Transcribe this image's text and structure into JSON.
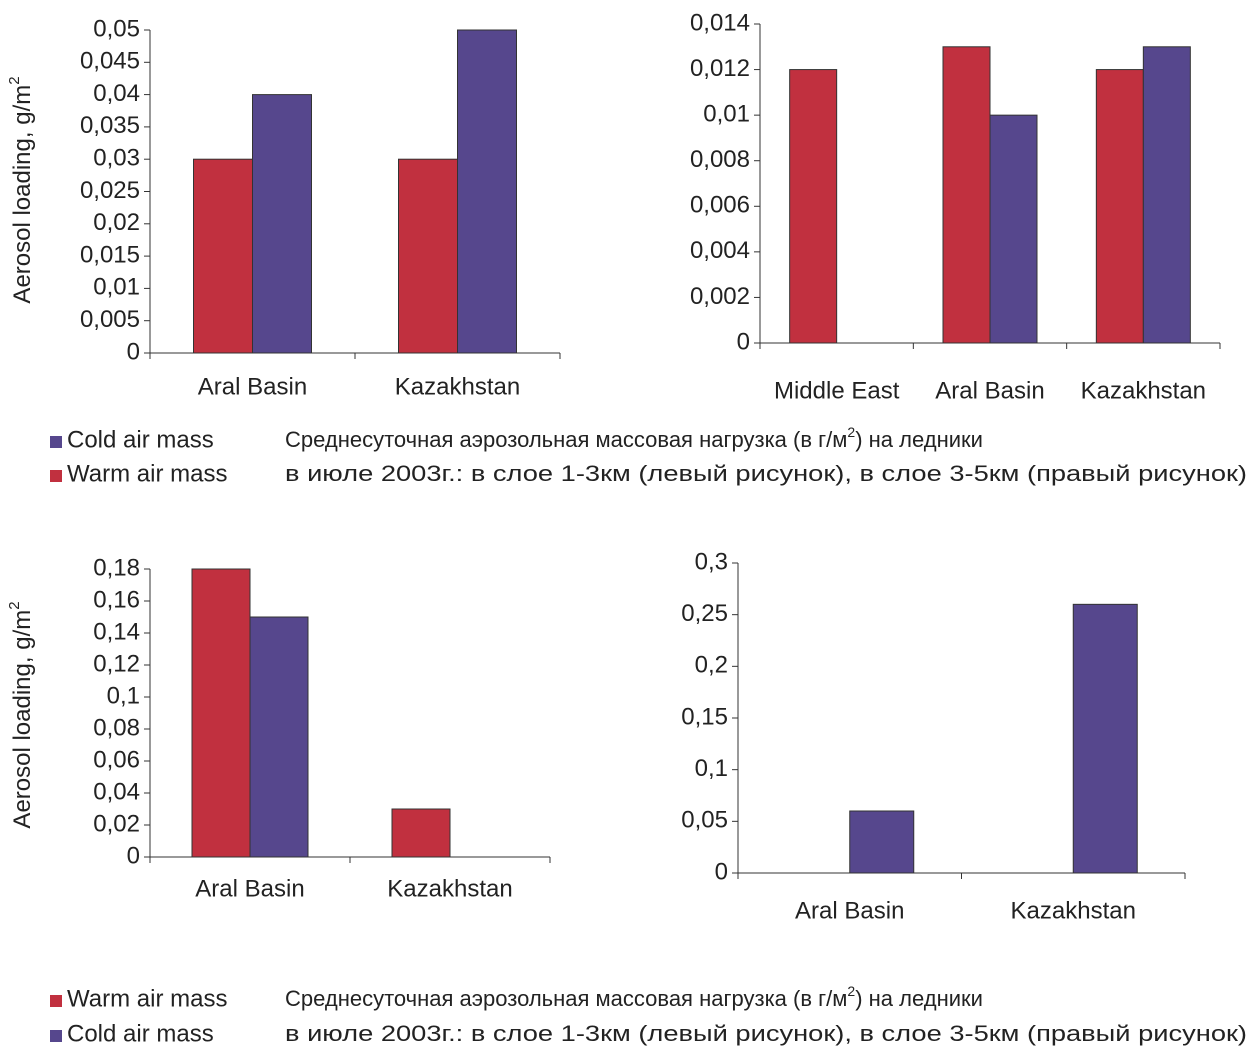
{
  "chart_data": [
    {
      "type": "bar",
      "ylabel": "Aerosol loading, g/m",
      "ylabel_sup": "2",
      "categories": [
        "Aral Basin",
        "Kazakhstan"
      ],
      "series": [
        {
          "name": "Warm air mass",
          "color": "#c1303f",
          "values": [
            0.03,
            0.03
          ]
        },
        {
          "name": "Cold air mass",
          "color": "#56478d",
          "values": [
            0.04,
            0.05
          ]
        }
      ],
      "ylim": [
        0,
        0.05
      ],
      "yticks": [
        0,
        {
          "value": 0.005,
          "label": "0,005"
        },
        {
          "value": 0.01,
          "label": "0,01"
        },
        {
          "value": 0.015,
          "label": "0,015"
        },
        {
          "value": 0.02,
          "label": "0,02"
        },
        {
          "value": 0.025,
          "label": "0,025"
        },
        {
          "value": 0.03,
          "label": "0,03"
        },
        {
          "value": 0.035,
          "label": "0,035"
        },
        {
          "value": 0.04,
          "label": "0,04"
        },
        {
          "value": 0.045,
          "label": "0,045"
        },
        {
          "value": 0.05,
          "label": "0,05"
        }
      ]
    },
    {
      "type": "bar",
      "categories": [
        "Middle East",
        "Aral Basin",
        "Kazakhstan"
      ],
      "series": [
        {
          "color": "#c1303f",
          "values": [
            0.012,
            0.013,
            0.012
          ]
        },
        {
          "color": "#56478d",
          "values": [
            null,
            0.01,
            0.013
          ]
        }
      ],
      "ylim": [
        0,
        0.014
      ],
      "yticks": [
        0,
        {
          "value": 0.002,
          "label": "0,002"
        },
        {
          "value": 0.004,
          "label": "0,004"
        },
        {
          "value": 0.006,
          "label": "0,006"
        },
        {
          "value": 0.008,
          "label": "0,008"
        },
        {
          "value": 0.01,
          "label": "0,01"
        },
        {
          "value": 0.012,
          "label": "0,012"
        },
        {
          "value": 0.014,
          "label": "0,014"
        }
      ]
    },
    {
      "type": "bar",
      "ylabel": "Aerosol loading, g/m",
      "ylabel_sup": "2",
      "categories": [
        "Aral Basin",
        "Kazakhstan"
      ],
      "series": [
        {
          "name": "Warm air mass",
          "color": "#c1303f",
          "values": [
            0.18,
            0.03
          ]
        },
        {
          "name": "Cold air mass",
          "color": "#56478d",
          "values": [
            0.15,
            null
          ]
        }
      ],
      "ylim": [
        0,
        0.18
      ],
      "yticks": [
        0,
        {
          "value": 0.02,
          "label": "0,02"
        },
        {
          "value": 0.04,
          "label": "0,04"
        },
        {
          "value": 0.06,
          "label": "0,06"
        },
        {
          "value": 0.08,
          "label": "0,08"
        },
        {
          "value": 0.1,
          "label": "0,1"
        },
        {
          "value": 0.12,
          "label": "0,12"
        },
        {
          "value": 0.14,
          "label": "0,14"
        },
        {
          "value": 0.16,
          "label": "0,16"
        },
        {
          "value": 0.18,
          "label": "0,18"
        }
      ]
    },
    {
      "type": "bar",
      "categories": [
        "Aral Basin",
        "Kazakhstan"
      ],
      "series": [
        {
          "color": "#c1303f",
          "values": [
            null,
            null
          ]
        },
        {
          "color": "#56478d",
          "values": [
            0.06,
            0.26
          ]
        }
      ],
      "ylim": [
        0,
        0.3
      ],
      "yticks": [
        0,
        {
          "value": 0.05,
          "label": "0,05"
        },
        {
          "value": 0.1,
          "label": "0,1"
        },
        {
          "value": 0.15,
          "label": "0,15"
        },
        {
          "value": 0.2,
          "label": "0,2"
        },
        {
          "value": 0.25,
          "label": "0,25"
        },
        {
          "value": 0.3,
          "label": "0,3"
        }
      ]
    }
  ],
  "captions": [
    {
      "line1": "Среднесуточная аэрозольная массовая нагрузка (в г/м",
      "line1_sup": "2",
      "line1_end": ") на ледники",
      "line2": "в июле 2003г.: в слое 1-3км (левый рисунок), в слое 3-5км (правый рисунок)"
    },
    {
      "line1": "Среднесуточная аэрозольная массовая нагрузка (в г/м",
      "line1_sup": "2",
      "line1_end": ") на ледники",
      "line2": "в июле 2003г.: в слое 1-3км (левый рисунок), в слое 3-5км (правый рисунок)"
    }
  ]
}
